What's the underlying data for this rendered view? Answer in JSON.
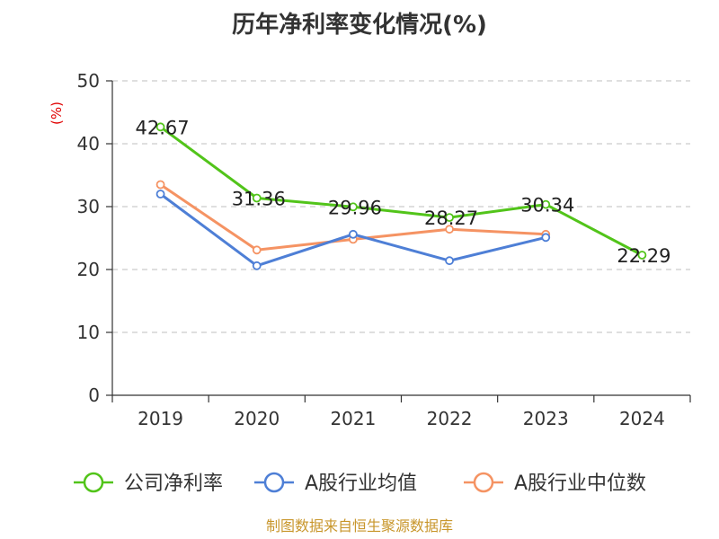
{
  "chart_data": {
    "type": "line",
    "title": "历年净利率变化情况(%)",
    "ylabel": "(%)",
    "xlabel": "",
    "categories": [
      "2019",
      "2020",
      "2021",
      "2022",
      "2023",
      "2024"
    ],
    "ylim": [
      0,
      50
    ],
    "yticks": [
      0,
      10,
      20,
      30,
      40,
      50
    ],
    "grid": true,
    "legend_position": "bottom",
    "series": [
      {
        "name": "公司净利率",
        "color": "#52c41a",
        "values": [
          42.67,
          31.36,
          29.96,
          28.27,
          30.34,
          22.29
        ],
        "labels": [
          "42.67",
          "31.36",
          "29.96",
          "28.27",
          "30.34",
          "22.29"
        ]
      },
      {
        "name": "A股行业均值",
        "color": "#4e7fd6",
        "values": [
          32.0,
          20.6,
          25.6,
          21.4,
          25.1,
          null
        ]
      },
      {
        "name": "A股行业中位数",
        "color": "#f59363",
        "values": [
          33.5,
          23.1,
          24.8,
          26.4,
          25.6,
          null
        ]
      }
    ],
    "source": "制图数据来自恒生聚源数据库"
  }
}
